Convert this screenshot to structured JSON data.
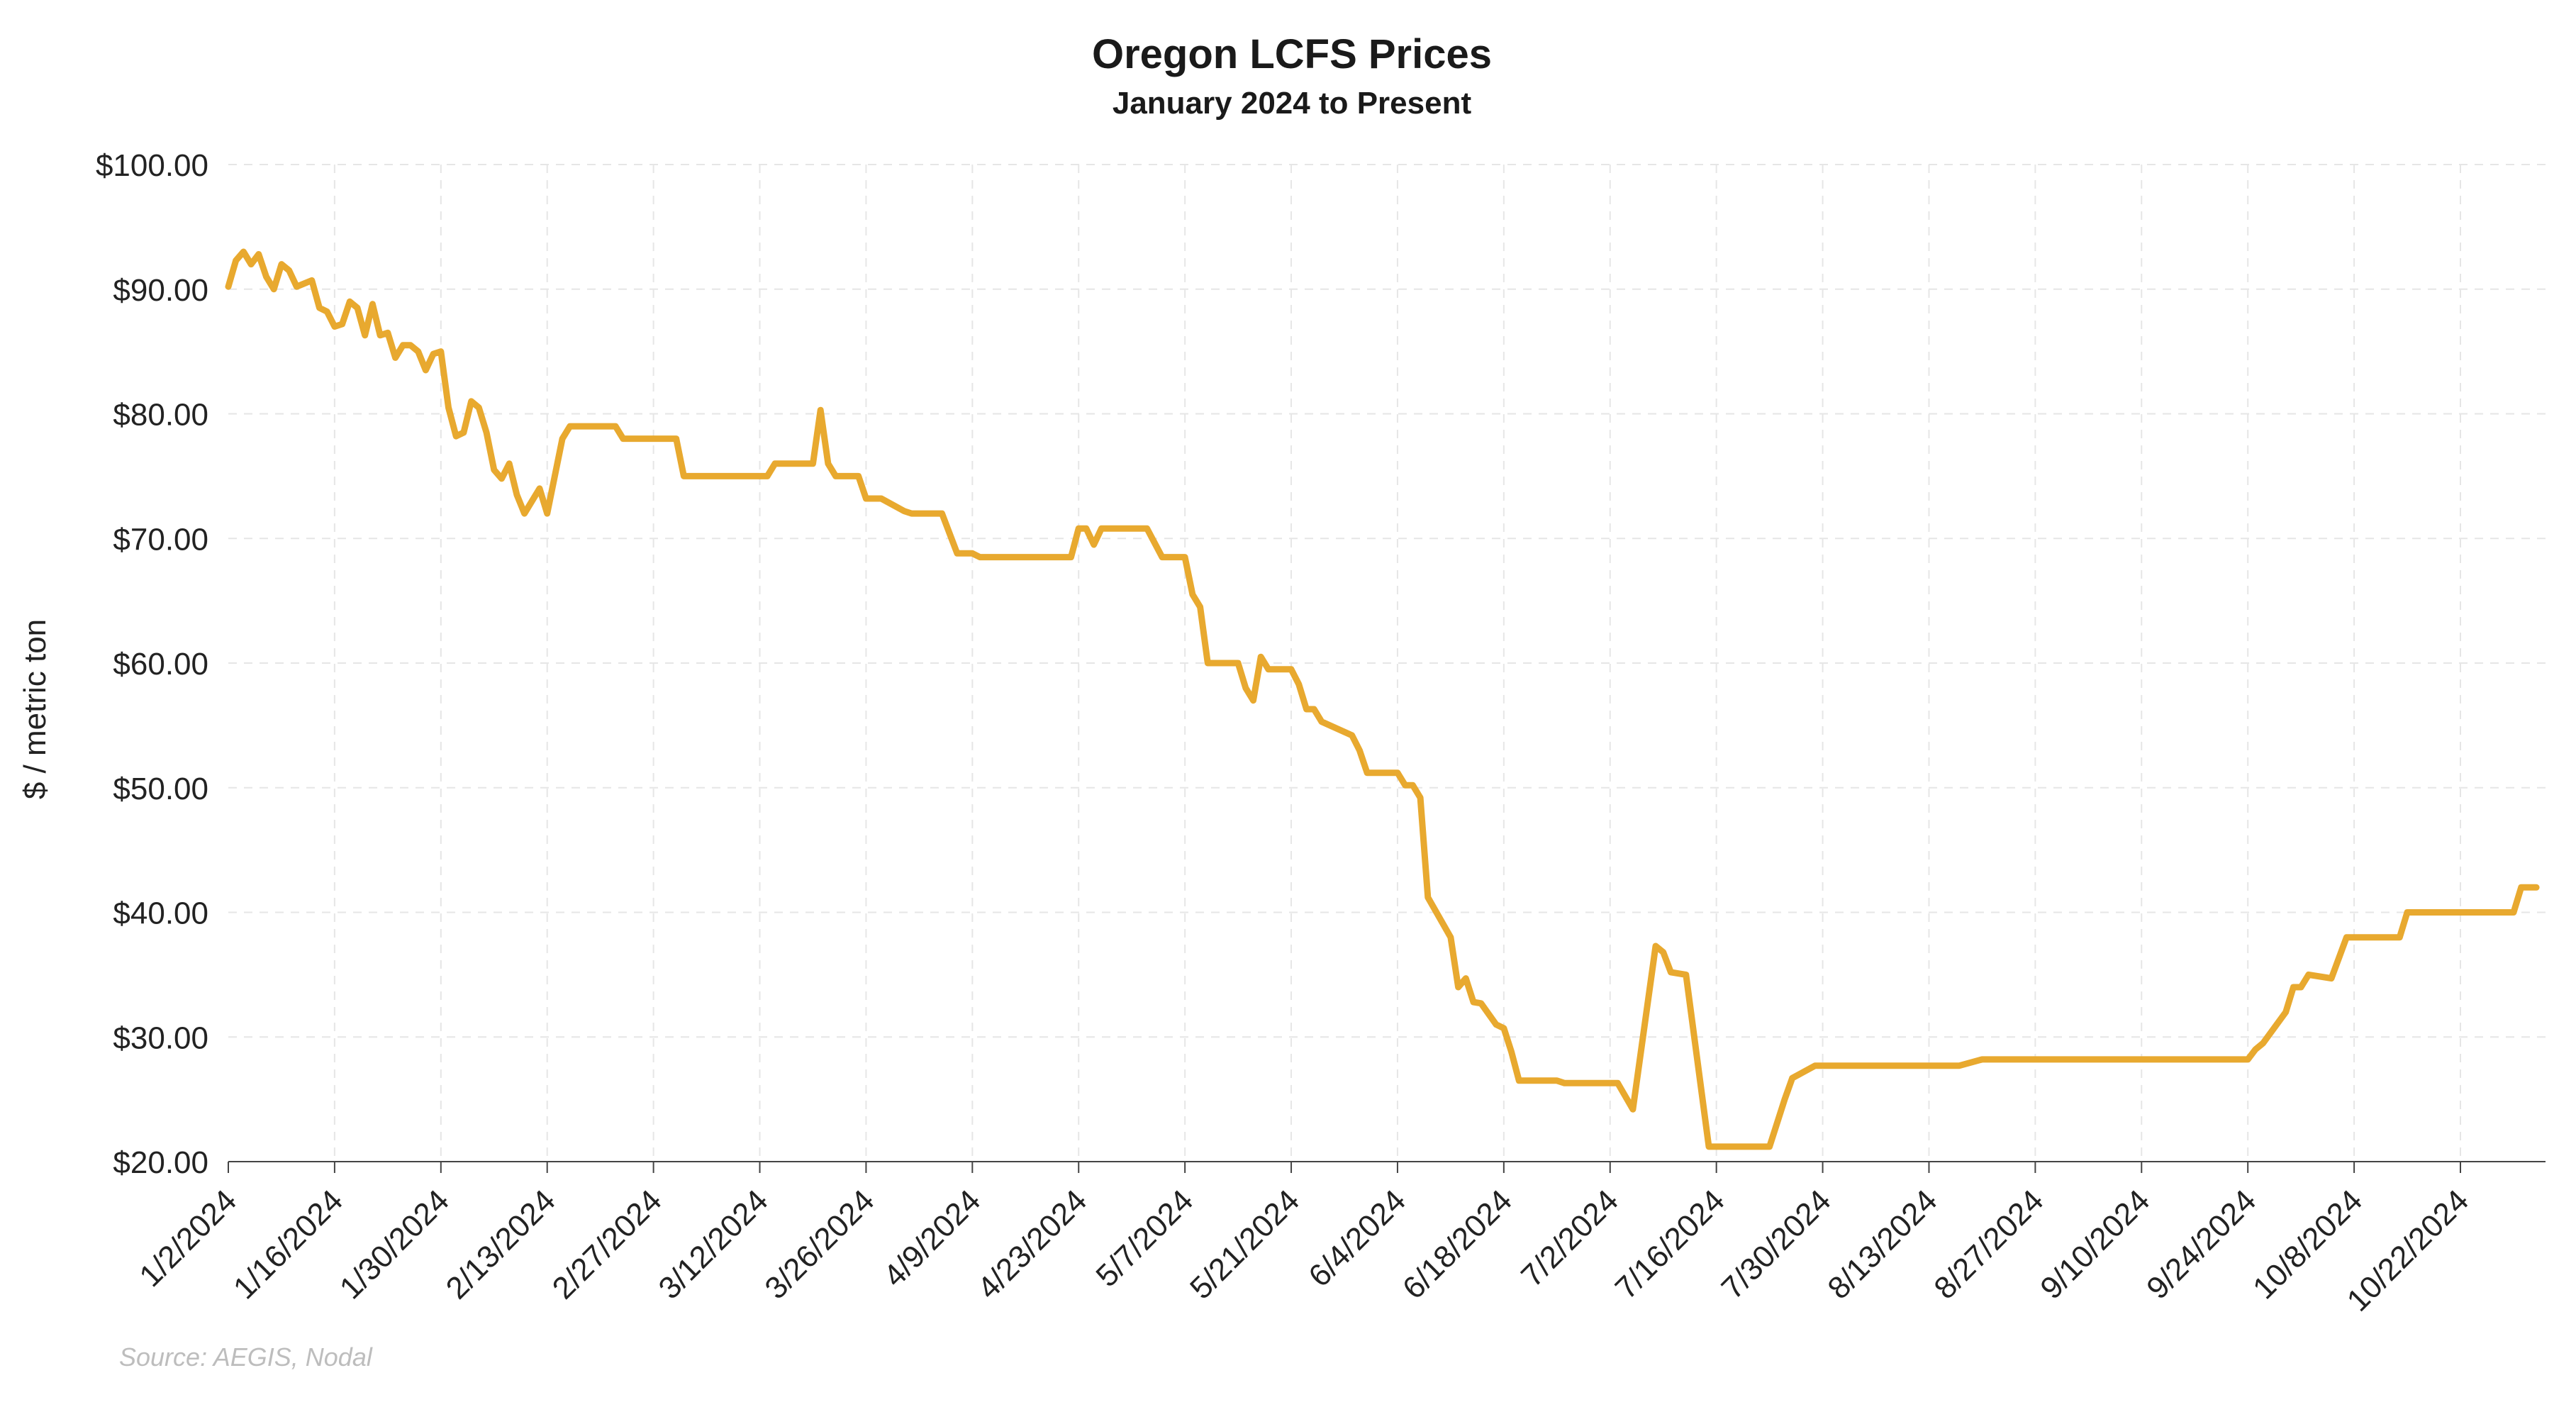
{
  "chart_data": {
    "type": "line",
    "title": "Oregon LCFS Prices",
    "subtitle": "January 2024 to Present",
    "ylabel": "$ / metric ton",
    "xlabel": "",
    "source": "Source: AEGIS, Nodal",
    "ylim": [
      20,
      100
    ],
    "y_ticks": [
      "$100.00",
      "$90.00",
      "$80.00",
      "$70.00",
      "$60.00",
      "$50.00",
      "$40.00",
      "$30.00",
      "$20.00"
    ],
    "y_tick_values": [
      100,
      90,
      80,
      70,
      60,
      50,
      40,
      30,
      20
    ],
    "x_ticks": [
      "1/2/2024",
      "1/16/2024",
      "1/30/2024",
      "2/13/2024",
      "2/27/2024",
      "3/12/2024",
      "3/26/2024",
      "4/9/2024",
      "4/23/2024",
      "5/7/2024",
      "5/21/2024",
      "6/4/2024",
      "6/18/2024",
      "7/2/2024",
      "7/16/2024",
      "7/30/2024",
      "8/13/2024",
      "8/27/2024",
      "9/10/2024",
      "9/24/2024",
      "10/8/2024",
      "10/22/2024"
    ],
    "xlim": [
      "2024-01-02",
      "2024-11-01"
    ],
    "grid": true,
    "line_color": "#E8A92F",
    "series": [
      {
        "name": "",
        "points": [
          [
            "2024-01-02",
            90.2
          ],
          [
            "2024-01-03",
            92.3
          ],
          [
            "2024-01-04",
            93.0
          ],
          [
            "2024-01-05",
            92.0
          ],
          [
            "2024-01-06",
            92.8
          ],
          [
            "2024-01-07",
            91.0
          ],
          [
            "2024-01-08",
            90.0
          ],
          [
            "2024-01-09",
            92.0
          ],
          [
            "2024-01-10",
            91.5
          ],
          [
            "2024-01-11",
            90.2
          ],
          [
            "2024-01-13",
            90.7
          ],
          [
            "2024-01-14",
            88.5
          ],
          [
            "2024-01-15",
            88.2
          ],
          [
            "2024-01-16",
            87.0
          ],
          [
            "2024-01-17",
            87.2
          ],
          [
            "2024-01-18",
            89.0
          ],
          [
            "2024-01-19",
            88.5
          ],
          [
            "2024-01-20",
            86.3
          ],
          [
            "2024-01-21",
            88.8
          ],
          [
            "2024-01-22",
            86.3
          ],
          [
            "2024-01-23",
            86.5
          ],
          [
            "2024-01-24",
            84.5
          ],
          [
            "2024-01-25",
            85.5
          ],
          [
            "2024-01-26",
            85.5
          ],
          [
            "2024-01-27",
            85.0
          ],
          [
            "2024-01-28",
            83.5
          ],
          [
            "2024-01-29",
            84.8
          ],
          [
            "2024-01-30",
            85.0
          ],
          [
            "2024-01-31",
            80.5
          ],
          [
            "2024-02-01",
            78.2
          ],
          [
            "2024-02-02",
            78.5
          ],
          [
            "2024-02-03",
            81.0
          ],
          [
            "2024-02-04",
            80.5
          ],
          [
            "2024-02-05",
            78.5
          ],
          [
            "2024-02-06",
            75.5
          ],
          [
            "2024-02-07",
            74.8
          ],
          [
            "2024-02-08",
            76.0
          ],
          [
            "2024-02-09",
            73.5
          ],
          [
            "2024-02-10",
            72.0
          ],
          [
            "2024-02-11",
            73.0
          ],
          [
            "2024-02-12",
            74.0
          ],
          [
            "2024-02-13",
            72.0
          ],
          [
            "2024-02-14",
            75.0
          ],
          [
            "2024-02-15",
            78.0
          ],
          [
            "2024-02-16",
            79.0
          ],
          [
            "2024-02-22",
            79.0
          ],
          [
            "2024-02-23",
            78.0
          ],
          [
            "2024-03-01",
            78.0
          ],
          [
            "2024-03-02",
            75.0
          ],
          [
            "2024-03-13",
            75.0
          ],
          [
            "2024-03-14",
            76.0
          ],
          [
            "2024-03-19",
            76.0
          ],
          [
            "2024-03-20",
            80.3
          ],
          [
            "2024-03-21",
            76.0
          ],
          [
            "2024-03-22",
            75.0
          ],
          [
            "2024-03-25",
            75.0
          ],
          [
            "2024-03-26",
            73.2
          ],
          [
            "2024-03-28",
            73.2
          ],
          [
            "2024-03-31",
            72.2
          ],
          [
            "2024-04-01",
            72.0
          ],
          [
            "2024-04-05",
            72.0
          ],
          [
            "2024-04-07",
            68.8
          ],
          [
            "2024-04-09",
            68.8
          ],
          [
            "2024-04-10",
            68.5
          ],
          [
            "2024-04-22",
            68.5
          ],
          [
            "2024-04-23",
            70.8
          ],
          [
            "2024-04-24",
            70.8
          ],
          [
            "2024-04-25",
            69.5
          ],
          [
            "2024-04-26",
            70.8
          ],
          [
            "2024-05-02",
            70.8
          ],
          [
            "2024-05-04",
            68.5
          ],
          [
            "2024-05-07",
            68.5
          ],
          [
            "2024-05-08",
            65.5
          ],
          [
            "2024-05-09",
            64.5
          ],
          [
            "2024-05-10",
            60.0
          ],
          [
            "2024-05-14",
            60.0
          ],
          [
            "2024-05-15",
            58.0
          ],
          [
            "2024-05-16",
            57.0
          ],
          [
            "2024-05-17",
            60.5
          ],
          [
            "2024-05-18",
            59.5
          ],
          [
            "2024-05-21",
            59.5
          ],
          [
            "2024-05-22",
            58.3
          ],
          [
            "2024-05-23",
            56.3
          ],
          [
            "2024-05-24",
            56.3
          ],
          [
            "2024-05-25",
            55.3
          ],
          [
            "2024-05-29",
            54.2
          ],
          [
            "2024-05-30",
            53.0
          ],
          [
            "2024-05-31",
            51.2
          ],
          [
            "2024-06-04",
            51.2
          ],
          [
            "2024-06-05",
            50.2
          ],
          [
            "2024-06-06",
            50.2
          ],
          [
            "2024-06-07",
            49.2
          ],
          [
            "2024-06-08",
            41.2
          ],
          [
            "2024-06-11",
            38.0
          ],
          [
            "2024-06-12",
            34.0
          ],
          [
            "2024-06-13",
            34.7
          ],
          [
            "2024-06-14",
            32.8
          ],
          [
            "2024-06-15",
            32.7
          ],
          [
            "2024-06-17",
            31.0
          ],
          [
            "2024-06-18",
            30.7
          ],
          [
            "2024-06-19",
            28.8
          ],
          [
            "2024-06-20",
            26.5
          ],
          [
            "2024-06-25",
            26.5
          ],
          [
            "2024-06-26",
            26.3
          ],
          [
            "2024-07-03",
            26.3
          ],
          [
            "2024-07-05",
            24.2
          ],
          [
            "2024-07-08",
            37.3
          ],
          [
            "2024-07-09",
            36.8
          ],
          [
            "2024-07-10",
            35.2
          ],
          [
            "2024-07-12",
            35.0
          ],
          [
            "2024-07-15",
            21.2
          ],
          [
            "2024-07-23",
            21.2
          ],
          [
            "2024-07-25",
            25.0
          ],
          [
            "2024-07-26",
            26.7
          ],
          [
            "2024-07-29",
            27.7
          ],
          [
            "2024-08-17",
            27.7
          ],
          [
            "2024-08-20",
            28.2
          ],
          [
            "2024-09-24",
            28.2
          ],
          [
            "2024-09-25",
            29.0
          ],
          [
            "2024-09-26",
            29.5
          ],
          [
            "2024-09-29",
            32.0
          ],
          [
            "2024-09-30",
            34.0
          ],
          [
            "2024-10-01",
            34.0
          ],
          [
            "2024-10-02",
            35.0
          ],
          [
            "2024-10-05",
            34.7
          ],
          [
            "2024-10-07",
            38.0
          ],
          [
            "2024-10-14",
            38.0
          ],
          [
            "2024-10-15",
            40.0
          ],
          [
            "2024-10-29",
            40.0
          ],
          [
            "2024-10-30",
            42.0
          ],
          [
            "2024-11-01",
            42.0
          ]
        ]
      }
    ]
  }
}
